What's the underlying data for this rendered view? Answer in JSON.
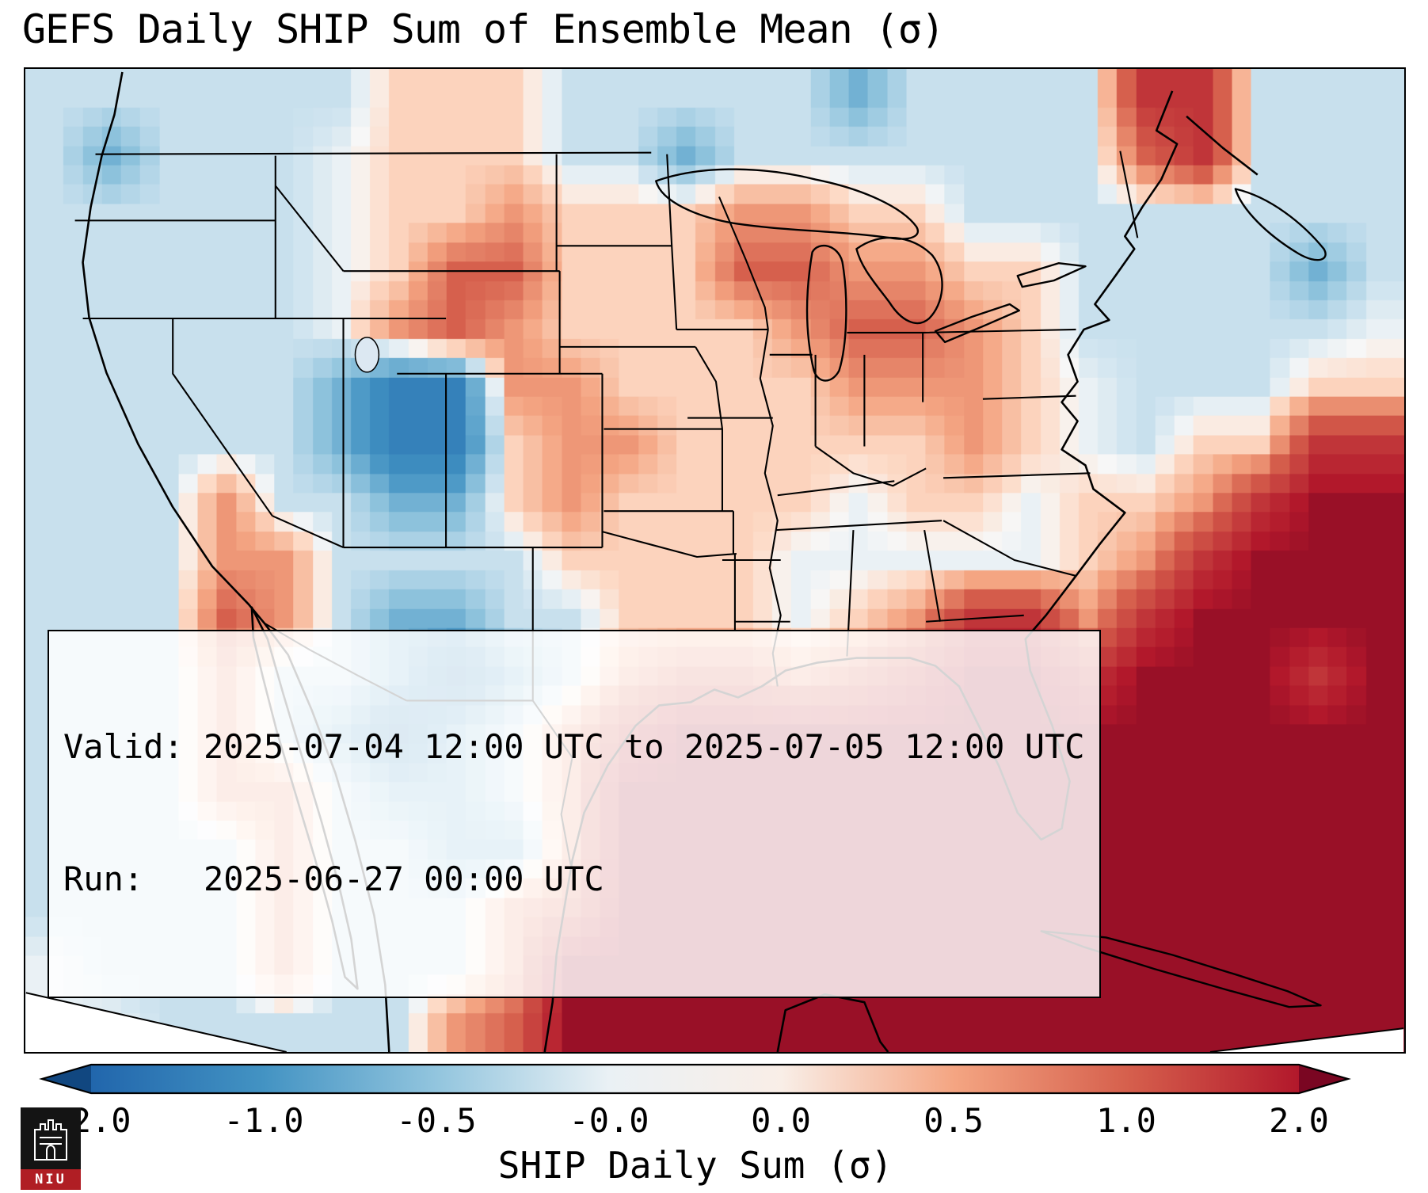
{
  "title": "GEFS Daily SHIP Sum of Ensemble Mean (σ)",
  "info_box": {
    "valid_line": "Valid: 2025-07-04 12:00 UTC to 2025-07-05 12:00 UTC",
    "run_line": "Run:   2025-06-27 00:00 UTC"
  },
  "colorbar": {
    "label": "SHIP Daily Sum (σ)",
    "ticks": [
      "-2.0",
      "-1.0",
      "-0.5",
      "-0.0",
      "0.0",
      "0.5",
      "1.0",
      "2.0"
    ]
  },
  "logo": {
    "text": "NIU"
  },
  "chart_data": {
    "type": "heatmap",
    "title": "GEFS Daily SHIP Sum of Ensemble Mean (σ)",
    "colorbar_label": "SHIP Daily Sum (σ)",
    "colorbar_tick_labels": [
      "-2.0",
      "-1.0",
      "-0.5",
      "-0.0",
      "0.0",
      "0.5",
      "1.0",
      "2.0"
    ],
    "colorbar_tick_values": [
      -2.0,
      -1.0,
      -0.5,
      -0.0,
      0.0,
      0.5,
      1.0,
      2.0
    ],
    "valid_period": "2025-07-04 12:00 UTC to 2025-07-05 12:00 UTC",
    "run_time": "2025-06-27 00:00 UTC",
    "units": "sigma",
    "colormap": "RdBu_r",
    "colormap_stops": [
      [
        -2.6,
        "#053061"
      ],
      [
        -2.0,
        "#2166ac"
      ],
      [
        -1.0,
        "#4393c3"
      ],
      [
        -0.5,
        "#92c5de"
      ],
      [
        -0.15,
        "#d1e5f0"
      ],
      [
        0.0,
        "#f7f7f7"
      ],
      [
        0.15,
        "#fddbc7"
      ],
      [
        0.5,
        "#f4a582"
      ],
      [
        1.0,
        "#d6604d"
      ],
      [
        2.0,
        "#b2182b"
      ],
      [
        2.6,
        "#67001f"
      ]
    ],
    "grid": {
      "cols": 24,
      "rows": 17,
      "values": [
        [
          -0.2,
          -0.2,
          -0.2,
          -0.2,
          -0.2,
          -0.2,
          0.2,
          0.2,
          0.2,
          -0.2,
          -0.2,
          -0.2,
          -0.2,
          -0.2,
          -0.7,
          -0.2,
          -0.2,
          -0.2,
          -0.2,
          1.6,
          1.6,
          -0.2,
          -0.2,
          -0.2
        ],
        [
          -0.2,
          -0.7,
          -0.2,
          -0.2,
          -0.2,
          -0.05,
          0.2,
          0.2,
          0.2,
          -0.2,
          -0.2,
          -0.7,
          -0.2,
          -0.2,
          -0.2,
          -0.2,
          -0.2,
          -0.2,
          -0.2,
          1.0,
          1.6,
          -0.2,
          -0.2,
          -0.2
        ],
        [
          -0.2,
          -0.2,
          -0.2,
          -0.2,
          -0.2,
          -0.05,
          0.2,
          0.2,
          0.6,
          0.2,
          0.2,
          0.2,
          0.6,
          0.6,
          0.2,
          0.2,
          -0.2,
          -0.2,
          -0.2,
          -0.2,
          -0.2,
          -0.2,
          -0.2,
          -0.2
        ],
        [
          -0.2,
          -0.2,
          -0.2,
          -0.2,
          -0.2,
          -0.05,
          0.2,
          1.0,
          1.0,
          0.2,
          0.2,
          0.2,
          1.0,
          1.0,
          0.6,
          0.6,
          0.2,
          0.2,
          -0.2,
          -0.2,
          -0.2,
          -0.2,
          -0.7,
          -0.2
        ],
        [
          -0.2,
          -0.2,
          -0.2,
          -0.2,
          -0.2,
          -0.05,
          0.6,
          1.0,
          0.6,
          0.2,
          0.2,
          0.2,
          0.2,
          0.6,
          1.0,
          1.0,
          0.6,
          0.2,
          -0.2,
          -0.2,
          -0.2,
          -0.2,
          -0.2,
          -0.05
        ],
        [
          -0.2,
          -0.2,
          -0.2,
          -0.2,
          -0.2,
          -0.7,
          -1.4,
          -1.4,
          0.6,
          0.6,
          0.2,
          0.2,
          0.2,
          0.2,
          0.6,
          0.6,
          0.6,
          0.2,
          -0.05,
          -0.2,
          -0.2,
          -0.2,
          0.2,
          0.2
        ],
        [
          -0.2,
          -0.2,
          -0.2,
          -0.2,
          -0.2,
          -0.7,
          -1.4,
          -1.4,
          0.2,
          0.6,
          0.6,
          0.2,
          0.2,
          0.2,
          0.2,
          0.2,
          0.6,
          0.2,
          -0.05,
          -0.2,
          0.2,
          0.2,
          1.6,
          1.6
        ],
        [
          -0.2,
          -0.2,
          -0.2,
          0.6,
          -0.2,
          -0.2,
          -0.7,
          -0.7,
          0.2,
          0.6,
          0.2,
          0.2,
          0.2,
          0.2,
          -0.05,
          0.2,
          0.2,
          -0.05,
          0.2,
          0.2,
          0.6,
          1.6,
          2.2,
          2.2
        ],
        [
          -0.2,
          -0.2,
          -0.2,
          0.6,
          0.6,
          -0.2,
          -0.2,
          -0.2,
          -0.2,
          0.2,
          0.2,
          0.2,
          0.2,
          -0.05,
          -0.05,
          -0.05,
          -0.05,
          -0.05,
          0.2,
          0.6,
          1.6,
          2.2,
          2.2,
          2.2
        ],
        [
          -0.2,
          -0.2,
          -0.2,
          1.0,
          0.6,
          -0.2,
          -0.7,
          -0.7,
          -0.2,
          -0.2,
          0.2,
          0.2,
          0.2,
          -0.05,
          0.2,
          0.6,
          1.6,
          1.6,
          0.6,
          1.6,
          2.2,
          2.2,
          2.2,
          2.2
        ],
        [
          -0.2,
          -0.2,
          -0.2,
          0.6,
          -0.2,
          -0.2,
          -0.7,
          -1.4,
          -0.7,
          -0.2,
          0.6,
          1.0,
          1.0,
          0.6,
          1.0,
          1.6,
          2.2,
          2.2,
          1.6,
          2.2,
          2.2,
          2.2,
          1.6,
          2.2
        ],
        [
          -0.2,
          -0.2,
          -0.2,
          0.6,
          -0.2,
          -0.7,
          -1.4,
          -0.7,
          -0.2,
          0.6,
          1.6,
          2.2,
          2.2,
          2.2,
          2.2,
          2.2,
          2.2,
          2.2,
          2.2,
          2.2,
          2.2,
          2.2,
          2.2,
          2.2
        ],
        [
          -0.2,
          -0.2,
          -0.2,
          0.6,
          0.6,
          -0.2,
          -0.7,
          -0.7,
          -0.2,
          0.6,
          2.2,
          2.2,
          2.2,
          2.2,
          2.2,
          2.2,
          2.2,
          2.2,
          2.2,
          2.2,
          2.2,
          2.2,
          2.2,
          2.2
        ],
        [
          -0.2,
          -0.2,
          -0.2,
          -0.2,
          0.6,
          -0.2,
          -0.2,
          -0.7,
          -0.7,
          0.6,
          2.2,
          2.2,
          2.2,
          2.2,
          2.2,
          2.2,
          2.2,
          2.2,
          2.2,
          2.2,
          2.2,
          2.2,
          2.2,
          2.2
        ],
        [
          -0.2,
          -0.2,
          -0.2,
          -0.2,
          0.6,
          -0.2,
          -0.2,
          -0.2,
          0.6,
          1.0,
          2.2,
          2.2,
          2.2,
          2.2,
          2.2,
          2.2,
          2.2,
          2.2,
          2.2,
          2.2,
          2.2,
          2.2,
          2.2,
          2.2
        ],
        [
          -0.05,
          -0.2,
          -0.2,
          -0.2,
          0.6,
          -0.2,
          -0.2,
          -0.2,
          0.6,
          2.2,
          2.2,
          2.2,
          2.2,
          2.2,
          2.2,
          2.2,
          2.2,
          2.2,
          2.2,
          2.2,
          2.2,
          2.2,
          2.2,
          2.2
        ],
        [
          -0.05,
          -0.05,
          -0.2,
          -0.2,
          -0.2,
          -0.2,
          -0.2,
          0.6,
          1.0,
          2.2,
          2.2,
          2.2,
          2.2,
          2.2,
          2.2,
          2.2,
          2.2,
          2.2,
          2.2,
          2.2,
          2.2,
          2.2,
          2.2,
          2.2
        ]
      ]
    }
  }
}
